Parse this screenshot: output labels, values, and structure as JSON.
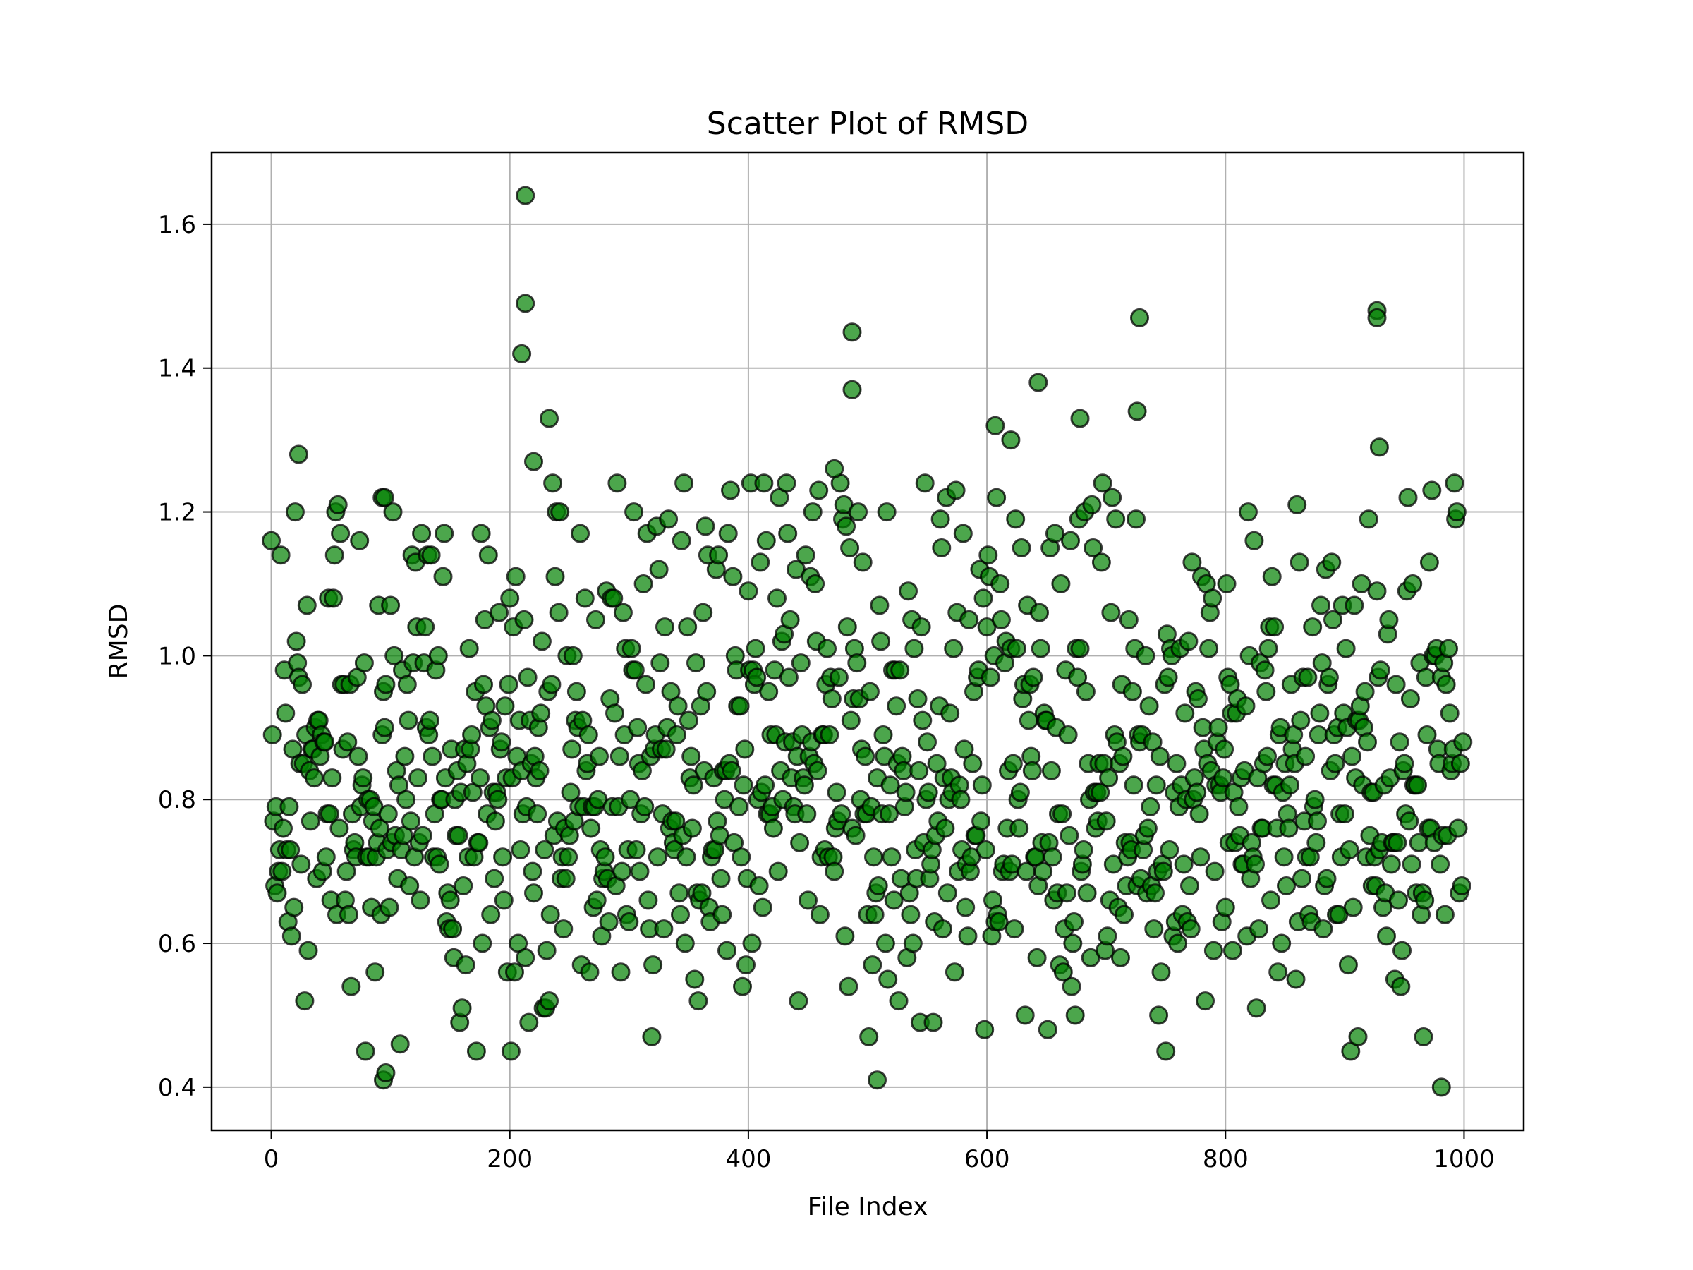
{
  "chart_data": {
    "type": "scatter",
    "title": "Scatter Plot of RMSD",
    "xlabel": "File Index",
    "ylabel": "RMSD",
    "xlim": [
      -50,
      1050
    ],
    "ylim": [
      0.34,
      1.7
    ],
    "xticks": [
      0,
      200,
      400,
      600,
      800,
      1000
    ],
    "yticks": [
      0.4,
      0.6,
      0.8,
      1.0,
      1.2,
      1.4,
      1.6
    ],
    "xtick_labels": [
      "0",
      "200",
      "400",
      "600",
      "800",
      "1000"
    ],
    "ytick_labels": [
      "0.4",
      "0.6",
      "0.8",
      "1.0",
      "1.2",
      "1.4",
      "1.6"
    ],
    "grid": true,
    "marker_color": "#008000",
    "marker_edge_color": "#000000",
    "marker_alpha": 0.7,
    "series": [
      {
        "n_points": 1000,
        "y_range": [
          0.4,
          1.64
        ],
        "outliers": [
          {
            "x": 213,
            "y": 1.64
          },
          {
            "x": 213,
            "y": 1.49
          },
          {
            "x": 210,
            "y": 1.42
          },
          {
            "x": 487,
            "y": 1.45
          },
          {
            "x": 487,
            "y": 1.37
          },
          {
            "x": 728,
            "y": 1.47
          },
          {
            "x": 927,
            "y": 1.48
          },
          {
            "x": 927,
            "y": 1.47
          },
          {
            "x": 643,
            "y": 1.38
          },
          {
            "x": 726,
            "y": 1.34
          },
          {
            "x": 678,
            "y": 1.33
          },
          {
            "x": 233,
            "y": 1.33
          },
          {
            "x": 607,
            "y": 1.32
          },
          {
            "x": 620,
            "y": 1.3
          },
          {
            "x": 929,
            "y": 1.29
          },
          {
            "x": 23,
            "y": 1.28
          },
          {
            "x": 220,
            "y": 1.27
          },
          {
            "x": 472,
            "y": 1.26
          },
          {
            "x": 93,
            "y": 1.22
          },
          {
            "x": 95,
            "y": 1.22
          },
          {
            "x": 94,
            "y": 0.41
          },
          {
            "x": 96,
            "y": 0.42
          },
          {
            "x": 508,
            "y": 0.41
          },
          {
            "x": 981,
            "y": 0.4
          }
        ]
      }
    ]
  }
}
